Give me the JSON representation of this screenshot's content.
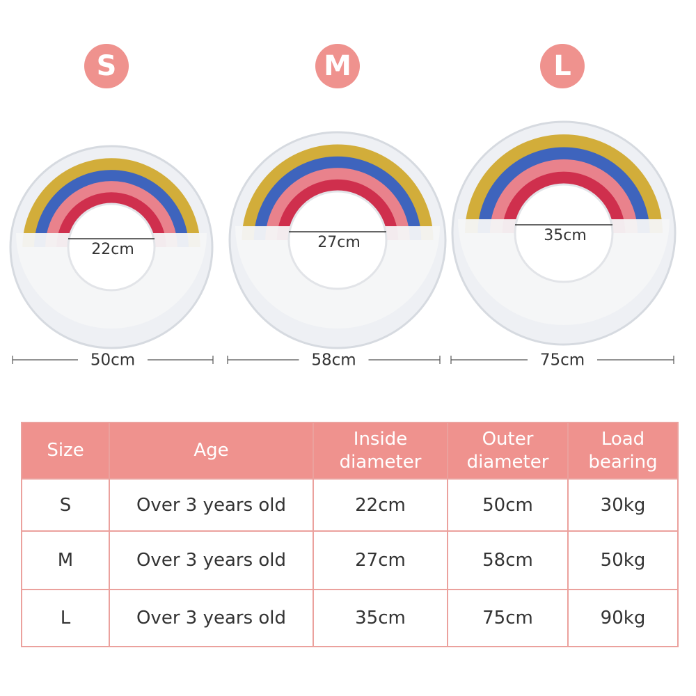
{
  "sizes": [
    {
      "badge": "S",
      "inside": "22cm",
      "outer": "50cm"
    },
    {
      "badge": "M",
      "inside": "27cm",
      "outer": "58cm"
    },
    {
      "badge": "L",
      "inside": "35cm",
      "outer": "75cm"
    }
  ],
  "table": {
    "header": [
      "Size",
      "Age",
      "Inside diameter",
      "Outer diameter",
      "Load bearing"
    ],
    "rows": [
      [
        "S",
        "Over 3 years old",
        "22cm",
        "50cm",
        "30kg"
      ],
      [
        "M",
        "Over 3 years old",
        "27cm",
        "58cm",
        "50kg"
      ],
      [
        "L",
        "Over 3 years old",
        "35cm",
        "75cm",
        "90kg"
      ]
    ]
  }
}
